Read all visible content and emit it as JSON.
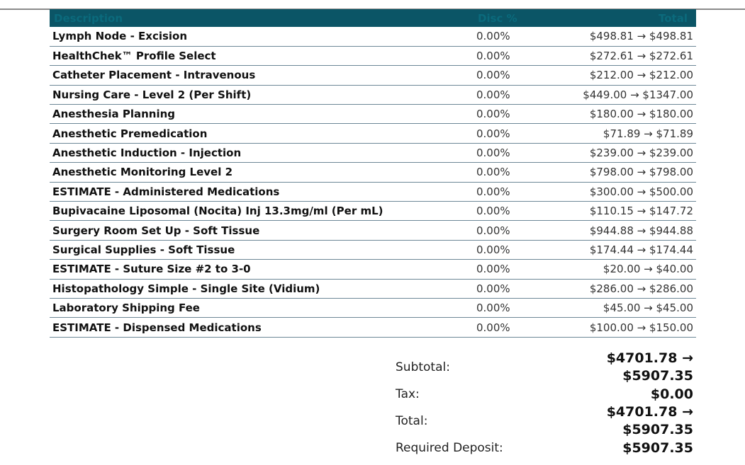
{
  "table": {
    "headers": {
      "description": "Description",
      "disc": "Disc %",
      "total": "Total"
    },
    "rows": [
      {
        "description": "Lymph Node - Excision",
        "disc": "0.00%",
        "total": "$498.81 → $498.81"
      },
      {
        "description": "HealthChek™ Profile Select",
        "disc": "0.00%",
        "total": "$272.61 → $272.61"
      },
      {
        "description": "Catheter Placement - Intravenous",
        "disc": "0.00%",
        "total": "$212.00 → $212.00"
      },
      {
        "description": "Nursing Care - Level 2 (Per Shift)",
        "disc": "0.00%",
        "total": "$449.00 → $1347.00"
      },
      {
        "description": "Anesthesia Planning",
        "disc": "0.00%",
        "total": "$180.00 → $180.00"
      },
      {
        "description": "Anesthetic Premedication",
        "disc": "0.00%",
        "total": "$71.89 → $71.89"
      },
      {
        "description": "Anesthetic Induction - Injection",
        "disc": "0.00%",
        "total": "$239.00 → $239.00"
      },
      {
        "description": "Anesthetic Monitoring Level 2",
        "disc": "0.00%",
        "total": "$798.00 → $798.00"
      },
      {
        "description": "ESTIMATE - Administered Medications",
        "disc": "0.00%",
        "total": "$300.00 → $500.00"
      },
      {
        "description": "Bupivacaine Liposomal (Nocita) Inj 13.3mg/ml (Per mL)",
        "disc": "0.00%",
        "total": "$110.15 → $147.72"
      },
      {
        "description": "Surgery Room Set Up - Soft Tissue",
        "disc": "0.00%",
        "total": "$944.88 → $944.88"
      },
      {
        "description": "Surgical Supplies - Soft Tissue",
        "disc": "0.00%",
        "total": "$174.44 → $174.44"
      },
      {
        "description": "ESTIMATE - Suture Size #2 to 3-0",
        "disc": "0.00%",
        "total": "$20.00 → $40.00"
      },
      {
        "description": "Histopathology Simple - Single Site (Vidium)",
        "disc": "0.00%",
        "total": "$286.00 → $286.00"
      },
      {
        "description": "Laboratory Shipping Fee",
        "disc": "0.00%",
        "total": "$45.00 → $45.00"
      },
      {
        "description": "ESTIMATE - Dispensed Medications",
        "disc": "0.00%",
        "total": "$100.00 → $150.00"
      }
    ]
  },
  "summary": {
    "subtotal_label": "Subtotal:",
    "subtotal_value": "$4701.78 → $5907.35",
    "tax_label": "Tax:",
    "tax_value": "$0.00",
    "total_label": "Total:",
    "total_value": "$4701.78 → $5907.35",
    "deposit_label": "Required Deposit:",
    "deposit_value": "$5907.35"
  },
  "colors": {
    "header_bg": "#0b5566",
    "header_text": "#0b6a7c",
    "row_rule": "#6c8796"
  }
}
